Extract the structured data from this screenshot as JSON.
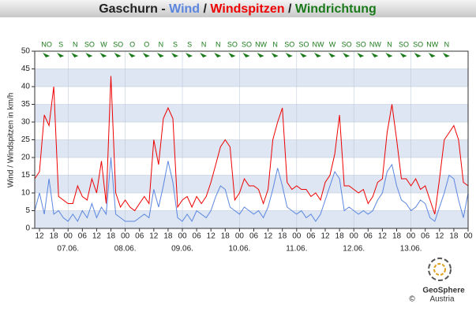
{
  "chart_data": {
    "type": "line",
    "title": "Gaschurn",
    "title_separator": "-",
    "series_separator": "/",
    "ylabel": "Wind / Windspitzen in km/h",
    "x": [
      -14,
      -12,
      -10,
      -8,
      -6,
      -4,
      -2,
      0,
      2,
      4,
      6,
      8,
      10,
      12,
      14,
      16,
      18,
      20,
      22,
      24,
      26,
      28,
      30,
      32,
      34,
      36,
      38,
      40,
      42,
      44,
      46,
      48,
      50,
      52,
      54,
      56,
      58,
      60,
      62,
      64,
      66,
      68,
      70,
      72,
      74,
      76,
      78,
      80,
      82,
      84,
      86,
      88,
      90,
      92,
      94,
      96,
      98,
      100,
      102,
      104,
      106,
      108,
      110,
      112,
      114,
      116,
      118,
      120,
      122,
      124,
      126,
      128,
      130,
      132,
      134,
      136,
      138,
      140,
      142,
      144,
      146,
      148,
      150,
      152,
      154,
      156,
      158,
      160,
      162,
      164,
      166,
      168
    ],
    "series": [
      {
        "name": "Windspitzen",
        "color": "#ee0000",
        "values": [
          14,
          16,
          32,
          29,
          40,
          9,
          8,
          7,
          7,
          12,
          9,
          8,
          14,
          10,
          19,
          7,
          43,
          10,
          6,
          8,
          6,
          5,
          7,
          9,
          7,
          25,
          18,
          31,
          34,
          31,
          6,
          8,
          9,
          6,
          9,
          7,
          9,
          13,
          18,
          23,
          25,
          23,
          8,
          10,
          14,
          12,
          12,
          11,
          7,
          11,
          25,
          30,
          34,
          13,
          11,
          12,
          11,
          11,
          9,
          10,
          8,
          13,
          15,
          21,
          32,
          12,
          12,
          11,
          10,
          11,
          7,
          9,
          13,
          14,
          27,
          35,
          25,
          14,
          14,
          12,
          14,
          11,
          12,
          8,
          4,
          14,
          25,
          27,
          29,
          25,
          13,
          12
        ]
      },
      {
        "name": "Wind",
        "color": "#5b86e0",
        "values": [
          5,
          10,
          4,
          14,
          4,
          5,
          3,
          2,
          4,
          2,
          5,
          3,
          7,
          3,
          6,
          4,
          20,
          4,
          3,
          2,
          2,
          2,
          3,
          4,
          3,
          11,
          6,
          12,
          19,
          13,
          3,
          2,
          4,
          2,
          5,
          4,
          3,
          5,
          9,
          12,
          11,
          6,
          5,
          4,
          6,
          5,
          4,
          5,
          3,
          6,
          11,
          17,
          12,
          6,
          5,
          4,
          5,
          3,
          4,
          2,
          4,
          8,
          12,
          16,
          14,
          5,
          6,
          5,
          4,
          5,
          4,
          5,
          8,
          10,
          16,
          18,
          12,
          8,
          7,
          5,
          6,
          8,
          7,
          3,
          2,
          6,
          10,
          15,
          14,
          8,
          3,
          10
        ]
      }
    ],
    "wind_direction": {
      "name": "Windrichtung",
      "color": "#1a7a1a",
      "x": [
        -9,
        -3,
        3,
        9,
        15,
        21,
        27,
        33,
        39,
        45,
        51,
        57,
        63,
        69,
        75,
        81,
        87,
        93,
        99,
        105,
        111,
        117,
        123,
        129,
        135,
        141,
        147,
        153,
        159
      ],
      "labels": [
        "NO",
        "S",
        "N",
        "SO",
        "W",
        "SO",
        "O",
        "O",
        "N",
        "S",
        "S",
        "N",
        "N",
        "SO",
        "SO",
        "NW",
        "N",
        "SO",
        "SO",
        "NW",
        "W",
        "SO",
        "SO",
        "NW",
        "N",
        "SO",
        "SO",
        "NW",
        "N"
      ]
    },
    "xlim": [
      -14,
      168
    ],
    "ylim": [
      0,
      50
    ],
    "yticks": [
      0,
      5,
      10,
      15,
      20,
      25,
      30,
      35,
      40,
      45,
      50
    ],
    "xticks": [
      {
        "value": -12,
        "label": "12"
      },
      {
        "value": -6,
        "label": "18"
      },
      {
        "value": 0,
        "label": "00"
      },
      {
        "value": 6,
        "label": "06"
      },
      {
        "value": 12,
        "label": "12"
      },
      {
        "value": 18,
        "label": "18"
      },
      {
        "value": 24,
        "label": "00"
      },
      {
        "value": 30,
        "label": "06"
      },
      {
        "value": 36,
        "label": "12"
      },
      {
        "value": 42,
        "label": "18"
      },
      {
        "value": 48,
        "label": "00"
      },
      {
        "value": 54,
        "label": "06"
      },
      {
        "value": 60,
        "label": "12"
      },
      {
        "value": 66,
        "label": "18"
      },
      {
        "value": 72,
        "label": "00"
      },
      {
        "value": 78,
        "label": "06"
      },
      {
        "value": 84,
        "label": "12"
      },
      {
        "value": 90,
        "label": "18"
      },
      {
        "value": 96,
        "label": "00"
      },
      {
        "value": 102,
        "label": "06"
      },
      {
        "value": 108,
        "label": "12"
      },
      {
        "value": 114,
        "label": "18"
      },
      {
        "value": 120,
        "label": "00"
      },
      {
        "value": 126,
        "label": "06"
      },
      {
        "value": 132,
        "label": "12"
      },
      {
        "value": 138,
        "label": "18"
      },
      {
        "value": 144,
        "label": "00"
      },
      {
        "value": 150,
        "label": "06"
      },
      {
        "value": 156,
        "label": "12"
      },
      {
        "value": 162,
        "label": "18"
      },
      {
        "value": 168,
        "label": "00"
      }
    ],
    "xticks_days": [
      {
        "value": 0,
        "label": "07.06."
      },
      {
        "value": 24,
        "label": "08.06."
      },
      {
        "value": 48,
        "label": "09.06."
      },
      {
        "value": 72,
        "label": "10.06."
      },
      {
        "value": 96,
        "label": "11.06."
      },
      {
        "value": 120,
        "label": "12.06."
      },
      {
        "value": 144,
        "label": "13.06."
      }
    ],
    "logo": {
      "name": "GeoSphere",
      "country": "Austria",
      "copyright": "©"
    }
  }
}
